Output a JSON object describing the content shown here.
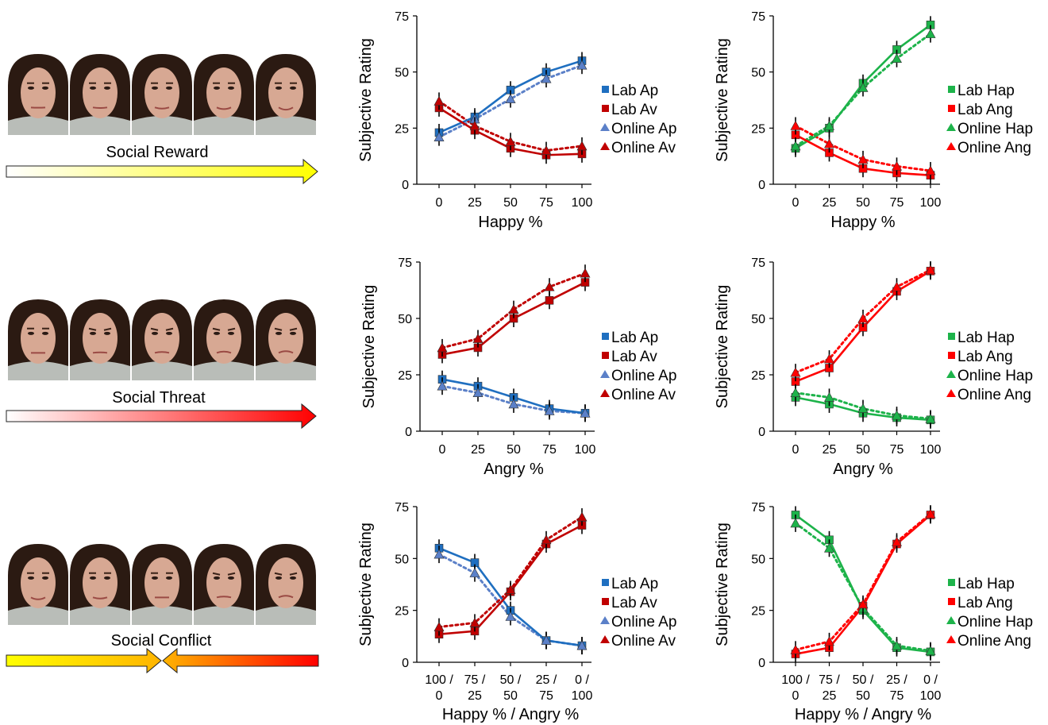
{
  "rows": [
    {
      "label": "Social Reward",
      "arrow": {
        "direction": "right",
        "from": "#ffffff",
        "to": "#ffff00"
      },
      "faces": [
        "face-1",
        "face-2",
        "face-3",
        "face-4",
        "face-5"
      ]
    },
    {
      "label": "Social Threat",
      "arrow": {
        "direction": "right",
        "from": "#ffffff",
        "to": "#ff0000"
      },
      "faces": [
        "face-1",
        "face-2",
        "face-3",
        "face-4",
        "face-5"
      ]
    },
    {
      "label": "Social Conflict",
      "arrow": {
        "direction": "converging",
        "left_from": "#ffff00",
        "left_to": "#ffb400",
        "right_from": "#ffb400",
        "right_to": "#ff0000"
      },
      "faces": [
        "face-1",
        "face-2",
        "face-3",
        "face-4",
        "face-5"
      ]
    }
  ],
  "colors": {
    "blue": "#1f6fc0",
    "red": "#d00000",
    "green": "#1db34a",
    "lightblue": "#5b80c8",
    "darkred": "#c00000"
  },
  "chart_data": [
    {
      "id": "reward-ap-av",
      "type": "line",
      "x": [
        "0",
        "25",
        "50",
        "75",
        "100"
      ],
      "xlabel": "Happy %",
      "ylabel": "Subjective Rating",
      "yticks": [
        "0",
        "25",
        "50",
        "75"
      ],
      "ylim": [
        0,
        75
      ],
      "legend": "right",
      "series": [
        {
          "name": "Lab Ap",
          "marker": "square",
          "style": "solid",
          "color": "#1f6fc0",
          "values": [
            23,
            30,
            42,
            50,
            55
          ]
        },
        {
          "name": "Lab Av",
          "marker": "square",
          "style": "solid",
          "color": "#c00000",
          "values": [
            34,
            24,
            16,
            13,
            13.5
          ]
        },
        {
          "name": "Online Ap",
          "marker": "triangle",
          "style": "dotted",
          "color": "#5b80c8",
          "values": [
            21,
            29,
            38,
            47,
            53
          ]
        },
        {
          "name": "Online Av",
          "marker": "triangle",
          "style": "dotted",
          "color": "#c00000",
          "values": [
            37,
            26,
            19,
            15,
            17
          ]
        }
      ]
    },
    {
      "id": "reward-hap-ang",
      "type": "line",
      "x": [
        "0",
        "25",
        "50",
        "75",
        "100"
      ],
      "xlabel": "Happy %",
      "ylabel": "Subjective Rating",
      "yticks": [
        "0",
        "25",
        "50",
        "75"
      ],
      "ylim": [
        0,
        75
      ],
      "legend": "right",
      "series": [
        {
          "name": "Lab Hap",
          "marker": "square",
          "style": "solid",
          "color": "#1db34a",
          "values": [
            16,
            25,
            45,
            60,
            71
          ]
        },
        {
          "name": "Lab Ang",
          "marker": "square",
          "style": "solid",
          "color": "#ff0000",
          "values": [
            22,
            14,
            7,
            5,
            4
          ]
        },
        {
          "name": "Online Hap",
          "marker": "triangle",
          "style": "dotted",
          "color": "#1db34a",
          "values": [
            17,
            26,
            43,
            56,
            67
          ]
        },
        {
          "name": "Online Ang",
          "marker": "triangle",
          "style": "dotted",
          "color": "#ff0000",
          "values": [
            26,
            18,
            11,
            8,
            6
          ]
        }
      ]
    },
    {
      "id": "threat-ap-av",
      "type": "line",
      "x": [
        "0",
        "25",
        "50",
        "75",
        "100"
      ],
      "xlabel": "Angry %",
      "ylabel": "Subjective Rating",
      "yticks": [
        "0",
        "25",
        "50",
        "75"
      ],
      "ylim": [
        0,
        75
      ],
      "legend": "right",
      "series": [
        {
          "name": "Lab Ap",
          "marker": "square",
          "style": "solid",
          "color": "#1f6fc0",
          "values": [
            23,
            20,
            15,
            10,
            8
          ]
        },
        {
          "name": "Lab Av",
          "marker": "square",
          "style": "solid",
          "color": "#c00000",
          "values": [
            34,
            37,
            50,
            58,
            66
          ]
        },
        {
          "name": "Online Ap",
          "marker": "triangle",
          "style": "dotted",
          "color": "#5b80c8",
          "values": [
            20,
            17,
            12,
            9,
            8
          ]
        },
        {
          "name": "Online Av",
          "marker": "triangle",
          "style": "dotted",
          "color": "#c00000",
          "values": [
            37,
            41,
            54,
            64,
            70
          ]
        }
      ]
    },
    {
      "id": "threat-hap-ang",
      "type": "line",
      "x": [
        "0",
        "25",
        "50",
        "75",
        "100"
      ],
      "xlabel": "Angry %",
      "ylabel": "Subjective Rating",
      "yticks": [
        "0",
        "25",
        "50",
        "75"
      ],
      "ylim": [
        0,
        75
      ],
      "legend": "right",
      "series": [
        {
          "name": "Lab Hap",
          "marker": "square",
          "style": "solid",
          "color": "#1db34a",
          "values": [
            15,
            12,
            8,
            6,
            5
          ]
        },
        {
          "name": "Lab Ang",
          "marker": "square",
          "style": "solid",
          "color": "#ff0000",
          "values": [
            22,
            28,
            46,
            62,
            71
          ]
        },
        {
          "name": "Online Hap",
          "marker": "triangle",
          "style": "dotted",
          "color": "#1db34a",
          "values": [
            17,
            15,
            10,
            7,
            5.5
          ]
        },
        {
          "name": "Online Ang",
          "marker": "triangle",
          "style": "dotted",
          "color": "#ff0000",
          "values": [
            26,
            32,
            50,
            64,
            71.5
          ]
        }
      ]
    },
    {
      "id": "conflict-ap-av",
      "type": "line",
      "x": [
        [
          "100 /",
          "0"
        ],
        [
          "75 /",
          "25"
        ],
        [
          "50 /",
          "50"
        ],
        [
          "25 /",
          "75"
        ],
        [
          "0 /",
          "100"
        ]
      ],
      "xlabel": "Happy % / Angry %",
      "ylabel": "Subjective Rating",
      "yticks": [
        "0",
        "25",
        "50",
        "75"
      ],
      "ylim": [
        0,
        75
      ],
      "legend": "right",
      "series": [
        {
          "name": "Lab Ap",
          "marker": "square",
          "style": "solid",
          "color": "#1f6fc0",
          "values": [
            55,
            48,
            25,
            10.5,
            8
          ]
        },
        {
          "name": "Lab Av",
          "marker": "square",
          "style": "solid",
          "color": "#c00000",
          "values": [
            13.5,
            15,
            34,
            57,
            66
          ]
        },
        {
          "name": "Online Ap",
          "marker": "triangle",
          "style": "dotted",
          "color": "#5b80c8",
          "values": [
            52,
            43,
            22,
            10.5,
            8
          ]
        },
        {
          "name": "Online Av",
          "marker": "triangle",
          "style": "dotted",
          "color": "#c00000",
          "values": [
            17,
            19,
            35,
            59,
            70
          ]
        }
      ]
    },
    {
      "id": "conflict-hap-ang",
      "type": "line",
      "x": [
        [
          "100 /",
          "0"
        ],
        [
          "75 /",
          "25"
        ],
        [
          "50 /",
          "50"
        ],
        [
          "25 /",
          "75"
        ],
        [
          "0 /",
          "100"
        ]
      ],
      "xlabel": "Happy % / Angry %",
      "ylabel": "Subjective Rating",
      "yticks": [
        "0",
        "25",
        "50",
        "75"
      ],
      "ylim": [
        0,
        75
      ],
      "legend": "right",
      "series": [
        {
          "name": "Lab Hap",
          "marker": "square",
          "style": "solid",
          "color": "#1db34a",
          "values": [
            71,
            59,
            25,
            7,
            5
          ]
        },
        {
          "name": "Lab Ang",
          "marker": "square",
          "style": "solid",
          "color": "#ff0000",
          "values": [
            4,
            7,
            27,
            57,
            71
          ]
        },
        {
          "name": "Online Hap",
          "marker": "triangle",
          "style": "dotted",
          "color": "#1db34a",
          "values": [
            67,
            55,
            26,
            8,
            5.5
          ]
        },
        {
          "name": "Online Ang",
          "marker": "triangle",
          "style": "dotted",
          "color": "#ff0000",
          "values": [
            6,
            10,
            28,
            58,
            71.5
          ]
        }
      ]
    }
  ]
}
